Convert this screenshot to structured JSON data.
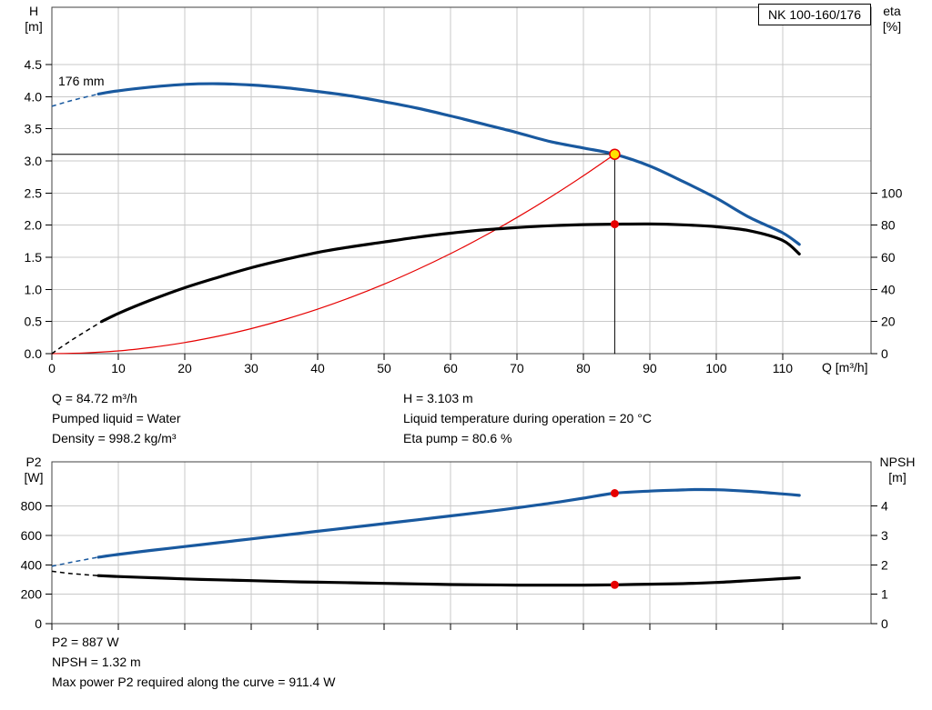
{
  "axis_titles": {
    "h_line1": "H",
    "h_line2": "[m]",
    "eta_line1": "eta",
    "eta_line2": "[%]",
    "q": "Q [m³/h]",
    "p2_line1": "P2",
    "p2_line2": "[W]",
    "npsh_line1": "NPSH",
    "npsh_line2": "[m]"
  },
  "info_top": {
    "line1_left": "Q = 84.72 m³/h",
    "line2_left": "Pumped liquid = Water",
    "line3_left": "Density = 998.2 kg/m³",
    "line1_right": "H = 3.103 m",
    "line2_right": "Liquid temperature during operation = 20 °C",
    "line3_right": "Eta pump = 80.6 %"
  },
  "info_bottom": {
    "line1": "P2 = 887 W",
    "line2": "NPSH = 1.32 m",
    "line3": "Max power P2 required along the curve = 911.4 W"
  },
  "style_colors": {
    "curve_blue": "#19599f",
    "curve_black": "#000000",
    "curve_red": "#e60000",
    "marker_yellow": "#ffe100",
    "grid": "#c9c9c9",
    "border": "#404040"
  },
  "chart_data": [
    {
      "name": "head-eta-chart",
      "type": "line",
      "title": "NK 100-160/176",
      "xlabel": "Q [m³/h]",
      "ylabel_left": "H [m]",
      "ylabel_right": "eta [%]",
      "xlim": [
        0,
        123.3
      ],
      "ylim_left": [
        0,
        5.39
      ],
      "ylim_right": [
        0,
        215.6
      ],
      "grid": true,
      "x_ticks": [
        0,
        10,
        20,
        30,
        40,
        50,
        60,
        70,
        80,
        90,
        100,
        110
      ],
      "show_x_tick_labels": true,
      "left_ticks": [
        [
          0,
          "0.0"
        ],
        [
          0.5,
          "0.5"
        ],
        [
          1,
          "1.0"
        ],
        [
          1.5,
          "1.5"
        ],
        [
          2,
          "2.0"
        ],
        [
          2.5,
          "2.5"
        ],
        [
          3,
          "3.0"
        ],
        [
          3.5,
          "3.5"
        ],
        [
          4,
          "4.0"
        ],
        [
          4.5,
          "4.5"
        ]
      ],
      "right_ticks": [
        [
          0,
          "0"
        ],
        [
          20,
          "20"
        ],
        [
          40,
          "40"
        ],
        [
          60,
          "60"
        ],
        [
          80,
          "80"
        ],
        [
          100,
          "100"
        ]
      ],
      "annotations": [
        {
          "text": "176 mm"
        }
      ],
      "operating_point": {
        "q_m3h": 84.72,
        "h_m": 3.103,
        "eta_pct": 80.6
      },
      "series": [
        {
          "name": "duty-head-line",
          "axis": "left",
          "color": "#000000",
          "width": 1,
          "style": "solid",
          "points": [
            [
              0,
              3.103
            ],
            [
              84.72,
              3.103
            ]
          ]
        },
        {
          "name": "duty-flow-line",
          "axis": "left",
          "color": "#000000",
          "width": 1,
          "style": "solid",
          "points": [
            [
              84.72,
              0
            ],
            [
              84.72,
              3.103
            ]
          ]
        },
        {
          "name": "system-curve",
          "axis": "left",
          "color": "#e60000",
          "width": 1.2,
          "style": "solid",
          "points": [
            [
              0,
              0
            ],
            [
              5,
              0.011
            ],
            [
              10,
              0.043
            ],
            [
              15,
              0.097
            ],
            [
              20,
              0.173
            ],
            [
              25,
              0.27
            ],
            [
              30,
              0.389
            ],
            [
              35,
              0.53
            ],
            [
              40,
              0.692
            ],
            [
              45,
              0.875
            ],
            [
              50,
              1.081
            ],
            [
              55,
              1.308
            ],
            [
              60,
              1.556
            ],
            [
              65,
              1.827
            ],
            [
              70,
              2.118
            ],
            [
              75,
              2.432
            ],
            [
              80,
              2.767
            ],
            [
              84.72,
              3.103
            ]
          ]
        },
        {
          "name": "eta-curve-dashed",
          "axis": "right",
          "color": "#000000",
          "width": 1.5,
          "style": "dashed",
          "points": [
            [
              0,
              0
            ],
            [
              3,
              8.5
            ],
            [
              7.5,
              20
            ]
          ]
        },
        {
          "name": "eta-curve",
          "axis": "right",
          "color": "#000000",
          "width": 3.2,
          "style": "solid",
          "points": [
            [
              7.5,
              20
            ],
            [
              10,
              25
            ],
            [
              15,
              33.5
            ],
            [
              20,
              41
            ],
            [
              25,
              47.5
            ],
            [
              30,
              53.5
            ],
            [
              35,
              58.5
            ],
            [
              40,
              63
            ],
            [
              45,
              66.5
            ],
            [
              50,
              69.5
            ],
            [
              55,
              72.5
            ],
            [
              60,
              75
            ],
            [
              65,
              77
            ],
            [
              70,
              78.5
            ],
            [
              75,
              79.6
            ],
            [
              80,
              80.3
            ],
            [
              84.72,
              80.6
            ],
            [
              90,
              80.7
            ],
            [
              95,
              80.2
            ],
            [
              100,
              79
            ],
            [
              105,
              76.5
            ],
            [
              110,
              70.5
            ],
            [
              112.5,
              62
            ]
          ]
        },
        {
          "name": "head-curve-dashed",
          "axis": "left",
          "color": "#19599f",
          "width": 1.5,
          "style": "dashed",
          "points": [
            [
              0,
              3.85
            ],
            [
              3,
              3.94
            ],
            [
              7,
              4.04
            ]
          ]
        },
        {
          "name": "head-curve",
          "axis": "left",
          "color": "#19599f",
          "width": 3.2,
          "style": "solid",
          "points": [
            [
              7,
              4.04
            ],
            [
              10,
              4.09
            ],
            [
              15,
              4.15
            ],
            [
              20,
              4.19
            ],
            [
              25,
              4.2
            ],
            [
              30,
              4.18
            ],
            [
              35,
              4.14
            ],
            [
              40,
              4.08
            ],
            [
              45,
              4.01
            ],
            [
              50,
              3.92
            ],
            [
              55,
              3.82
            ],
            [
              60,
              3.7
            ],
            [
              65,
              3.57
            ],
            [
              70,
              3.44
            ],
            [
              75,
              3.3
            ],
            [
              80,
              3.2
            ],
            [
              84.72,
              3.103
            ],
            [
              90,
              2.92
            ],
            [
              95,
              2.68
            ],
            [
              100,
              2.42
            ],
            [
              105,
              2.12
            ],
            [
              110,
              1.88
            ],
            [
              112.5,
              1.7
            ]
          ]
        }
      ],
      "markers": [
        {
          "name": "eta-duty-dot",
          "axis": "right",
          "x": 84.72,
          "y": 80.6,
          "r": 4.5,
          "fill": "#e60000",
          "interactable": false
        },
        {
          "name": "duty-point-marker",
          "axis": "left",
          "x": 84.72,
          "y": 3.103,
          "r": 5.5,
          "fill": "#ffe100",
          "stroke": "#e60000",
          "stroke_width": 1.5,
          "interactable": true
        }
      ]
    },
    {
      "name": "p2-npsh-chart",
      "type": "line",
      "title": "",
      "xlabel": "",
      "ylabel_left": "P2 [W]",
      "ylabel_right": "NPSH [m]",
      "xlim": [
        0,
        123.3
      ],
      "ylim_left": [
        0,
        1100
      ],
      "ylim_right": [
        0,
        5.5
      ],
      "grid": true,
      "x_ticks": [
        0,
        10,
        20,
        30,
        40,
        50,
        60,
        70,
        80,
        90,
        100,
        110
      ],
      "show_x_tick_labels": false,
      "left_ticks": [
        [
          0,
          "0"
        ],
        [
          200,
          "200"
        ],
        [
          400,
          "400"
        ],
        [
          600,
          "600"
        ],
        [
          800,
          "800"
        ]
      ],
      "right_ticks": [
        [
          0,
          "0"
        ],
        [
          1,
          "1"
        ],
        [
          2,
          "2"
        ],
        [
          3,
          "3"
        ],
        [
          4,
          "4"
        ]
      ],
      "annotations": [],
      "operating_point": {
        "q_m3h": 84.72,
        "p2_w": 887,
        "npsh_m": 1.32
      },
      "max_p2_along_curve_w": 911.4,
      "series": [
        {
          "name": "p2-curve-dashed",
          "axis": "left",
          "color": "#19599f",
          "width": 1.5,
          "style": "dashed",
          "points": [
            [
              0,
              390
            ],
            [
              3,
              418
            ],
            [
              7,
              452
            ]
          ]
        },
        {
          "name": "p2-curve",
          "axis": "left",
          "color": "#19599f",
          "width": 3.2,
          "style": "solid",
          "points": [
            [
              7,
              452
            ],
            [
              10,
              470
            ],
            [
              15,
              498
            ],
            [
              20,
              524
            ],
            [
              25,
              550
            ],
            [
              30,
              576
            ],
            [
              35,
              602
            ],
            [
              40,
              628
            ],
            [
              45,
              654
            ],
            [
              50,
              680
            ],
            [
              55,
              706
            ],
            [
              60,
              732
            ],
            [
              65,
              759
            ],
            [
              70,
              787
            ],
            [
              75,
              818
            ],
            [
              80,
              853
            ],
            [
              84.72,
              887
            ],
            [
              90,
              901
            ],
            [
              95,
              909
            ],
            [
              97,
              911.4
            ],
            [
              100,
              910
            ],
            [
              105,
              899
            ],
            [
              110,
              882
            ],
            [
              112.5,
              872
            ]
          ]
        },
        {
          "name": "npsh-curve-dashed",
          "axis": "right",
          "color": "#000000",
          "width": 1.5,
          "style": "dashed",
          "points": [
            [
              0,
              1.78
            ],
            [
              3,
              1.7
            ],
            [
              7,
              1.63
            ]
          ]
        },
        {
          "name": "npsh-curve",
          "axis": "right",
          "color": "#000000",
          "width": 3.2,
          "style": "solid",
          "points": [
            [
              7,
              1.63
            ],
            [
              10,
              1.6
            ],
            [
              15,
              1.56
            ],
            [
              20,
              1.52
            ],
            [
              25,
              1.49
            ],
            [
              30,
              1.46
            ],
            [
              35,
              1.43
            ],
            [
              40,
              1.41
            ],
            [
              45,
              1.39
            ],
            [
              50,
              1.37
            ],
            [
              55,
              1.35
            ],
            [
              60,
              1.33
            ],
            [
              65,
              1.32
            ],
            [
              70,
              1.31
            ],
            [
              75,
              1.31
            ],
            [
              80,
              1.31
            ],
            [
              84.72,
              1.32
            ],
            [
              90,
              1.34
            ],
            [
              95,
              1.36
            ],
            [
              100,
              1.4
            ],
            [
              105,
              1.46
            ],
            [
              110,
              1.53
            ],
            [
              112.5,
              1.56
            ]
          ]
        }
      ],
      "markers": [
        {
          "name": "p2-duty-dot",
          "axis": "left",
          "x": 84.72,
          "y": 887,
          "r": 4.5,
          "fill": "#e60000",
          "interactable": false
        },
        {
          "name": "npsh-duty-dot",
          "axis": "right",
          "x": 84.72,
          "y": 1.32,
          "r": 4.5,
          "fill": "#e60000",
          "interactable": false
        }
      ]
    }
  ]
}
